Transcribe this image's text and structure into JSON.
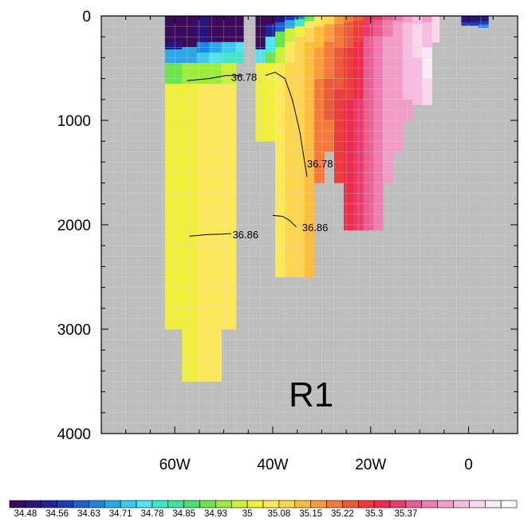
{
  "chart_data": {
    "type": "heatmap",
    "panel_label": "R1",
    "x_axis": {
      "range": [
        -75,
        10
      ],
      "tick_values": [
        -60,
        -40,
        -20,
        0
      ],
      "tick_labels": [
        "60W",
        "40W",
        "20W",
        "0"
      ]
    },
    "y_axis": {
      "range": [
        0,
        4000
      ],
      "inverted": true,
      "tick_values": [
        0,
        1000,
        2000,
        3000,
        4000
      ],
      "tick_labels": [
        "0",
        "1000",
        "2000",
        "3000",
        "4000"
      ]
    },
    "grid": true,
    "background_color": "#bebebe",
    "colorbar": {
      "orientation": "horizontal",
      "placement": "bottom",
      "tick_labels": [
        "34.48",
        "34.56",
        "34.63",
        "34.71",
        "34.78",
        "34.85",
        "34.93",
        "35",
        "35.08",
        "35.15",
        "35.22",
        "35.3",
        "35.37"
      ],
      "colors": [
        "#3c0a5a",
        "#2a157a",
        "#22239c",
        "#1f3ab8",
        "#1f5ed0",
        "#1f86e0",
        "#2aa8ea",
        "#3cc8f0",
        "#4fe4f0",
        "#3ce8c8",
        "#3ce49c",
        "#4ce070",
        "#6ce44c",
        "#9cec3c",
        "#ccf03c",
        "#f0f03c",
        "#fce85a",
        "#fcd64c",
        "#fcbc3c",
        "#fc9c3c",
        "#f47a3c",
        "#ec5a3c",
        "#ec3c3c",
        "#ec2c4c",
        "#e83c6c",
        "#ec5c90",
        "#f07cb0",
        "#f49cc8",
        "#f8bce0",
        "#fcd8ec",
        "#fceaf4",
        "#ffffff"
      ]
    },
    "columns": [
      {
        "x": [
          -62,
          -58.5
        ],
        "cells": [
          [
            0,
            250,
            0
          ],
          [
            250,
            320,
            1
          ],
          [
            320,
            450,
            6
          ],
          [
            450,
            650,
            12
          ],
          [
            650,
            3000,
            15
          ]
        ]
      },
      {
        "x": [
          -58.5,
          -55.5
        ],
        "cells": [
          [
            0,
            300,
            0
          ],
          [
            300,
            450,
            6
          ],
          [
            450,
            650,
            13
          ],
          [
            650,
            3500,
            15
          ]
        ]
      },
      {
        "x": [
          -55.5,
          -53
        ],
        "cells": [
          [
            0,
            250,
            1
          ],
          [
            250,
            350,
            5
          ],
          [
            350,
            450,
            7
          ],
          [
            450,
            650,
            13
          ],
          [
            650,
            3500,
            16
          ]
        ]
      },
      {
        "x": [
          -53,
          -50.5
        ],
        "cells": [
          [
            0,
            250,
            0
          ],
          [
            250,
            350,
            6
          ],
          [
            350,
            450,
            8
          ],
          [
            450,
            650,
            13
          ],
          [
            650,
            3500,
            16
          ]
        ]
      },
      {
        "x": [
          -50.5,
          -47.5
        ],
        "cells": [
          [
            0,
            250,
            0
          ],
          [
            250,
            350,
            7
          ],
          [
            350,
            450,
            9
          ],
          [
            450,
            650,
            14
          ],
          [
            650,
            3000,
            16
          ]
        ]
      },
      {
        "x": [
          -47.5,
          -46
        ],
        "cells": [
          [
            0,
            250,
            0
          ],
          [
            250,
            350,
            8
          ],
          [
            350,
            450,
            9
          ]
        ]
      },
      {
        "x": [
          -43.5,
          -41.5
        ],
        "cells": [
          [
            0,
            320,
            0
          ],
          [
            320,
            450,
            8
          ],
          [
            450,
            1200,
            15
          ]
        ]
      },
      {
        "x": [
          -41.5,
          -39.5
        ],
        "cells": [
          [
            0,
            80,
            0
          ],
          [
            80,
            200,
            2
          ],
          [
            200,
            350,
            8
          ],
          [
            350,
            450,
            12
          ],
          [
            450,
            1200,
            15
          ]
        ]
      },
      {
        "x": [
          -39.5,
          -37.5
        ],
        "cells": [
          [
            0,
            60,
            1
          ],
          [
            60,
            150,
            4
          ],
          [
            150,
            300,
            12
          ],
          [
            300,
            450,
            14
          ],
          [
            450,
            2500,
            16
          ]
        ]
      },
      {
        "x": [
          -37.5,
          -35.5
        ],
        "cells": [
          [
            0,
            40,
            3
          ],
          [
            40,
            120,
            6
          ],
          [
            120,
            250,
            14
          ],
          [
            250,
            450,
            16
          ],
          [
            450,
            2500,
            17
          ]
        ]
      },
      {
        "x": [
          -35.5,
          -33.5
        ],
        "cells": [
          [
            0,
            30,
            5
          ],
          [
            30,
            100,
            9
          ],
          [
            100,
            200,
            15
          ],
          [
            200,
            400,
            17
          ],
          [
            400,
            2500,
            17
          ]
        ]
      },
      {
        "x": [
          -33.5,
          -31.5
        ],
        "cells": [
          [
            0,
            50,
            12
          ],
          [
            50,
            120,
            16
          ],
          [
            120,
            250,
            17
          ],
          [
            250,
            500,
            18
          ],
          [
            500,
            2500,
            18
          ]
        ]
      },
      {
        "x": [
          -31.5,
          -29.5
        ],
        "cells": [
          [
            0,
            100,
            16
          ],
          [
            100,
            300,
            18
          ],
          [
            300,
            600,
            19
          ],
          [
            600,
            1600,
            20
          ]
        ]
      },
      {
        "x": [
          -29.5,
          -27.5
        ],
        "cells": [
          [
            0,
            80,
            17
          ],
          [
            80,
            250,
            19
          ],
          [
            250,
            600,
            20
          ],
          [
            600,
            1000,
            21
          ],
          [
            1000,
            1300,
            20
          ]
        ]
      },
      {
        "x": [
          -27.5,
          -25.5
        ],
        "cells": [
          [
            0,
            80,
            19
          ],
          [
            80,
            300,
            20
          ],
          [
            300,
            700,
            21
          ],
          [
            700,
            1600,
            22
          ]
        ]
      },
      {
        "x": [
          -25.5,
          -23.5
        ],
        "cells": [
          [
            0,
            60,
            20
          ],
          [
            60,
            300,
            21
          ],
          [
            300,
            800,
            22
          ],
          [
            800,
            1600,
            23
          ],
          [
            1600,
            2050,
            23
          ]
        ]
      },
      {
        "x": [
          -23.5,
          -21.5
        ],
        "cells": [
          [
            0,
            50,
            21
          ],
          [
            50,
            250,
            22
          ],
          [
            250,
            800,
            23
          ],
          [
            800,
            1600,
            24
          ],
          [
            1600,
            2050,
            24
          ]
        ]
      },
      {
        "x": [
          -21.5,
          -19.5
        ],
        "cells": [
          [
            0,
            40,
            22
          ],
          [
            40,
            200,
            24
          ],
          [
            200,
            700,
            25
          ],
          [
            700,
            1200,
            25
          ],
          [
            1200,
            2050,
            25
          ]
        ]
      },
      {
        "x": [
          -19.5,
          -17.5
        ],
        "cells": [
          [
            0,
            40,
            24
          ],
          [
            40,
            200,
            25
          ],
          [
            200,
            600,
            26
          ],
          [
            600,
            1200,
            26
          ],
          [
            1200,
            2050,
            26
          ]
        ]
      },
      {
        "x": [
          -17.5,
          -15.5
        ],
        "cells": [
          [
            0,
            40,
            25
          ],
          [
            40,
            200,
            26
          ],
          [
            200,
            600,
            27
          ],
          [
            600,
            1600,
            27
          ]
        ]
      },
      {
        "x": [
          -15.5,
          -13.5
        ],
        "cells": [
          [
            0,
            50,
            26
          ],
          [
            50,
            250,
            27
          ],
          [
            250,
            700,
            27
          ],
          [
            700,
            1300,
            27
          ]
        ]
      },
      {
        "x": [
          -13.5,
          -11.5
        ],
        "cells": [
          [
            0,
            60,
            27
          ],
          [
            60,
            300,
            28
          ],
          [
            300,
            800,
            28
          ],
          [
            800,
            1000,
            27
          ]
        ]
      },
      {
        "x": [
          -11.5,
          -9.5
        ],
        "cells": [
          [
            0,
            80,
            28
          ],
          [
            80,
            400,
            29
          ],
          [
            400,
            850,
            28
          ]
        ]
      },
      {
        "x": [
          -9.5,
          -7.5
        ],
        "cells": [
          [
            0,
            60,
            27
          ],
          [
            60,
            300,
            28
          ],
          [
            300,
            600,
            30
          ],
          [
            600,
            850,
            29
          ]
        ]
      },
      {
        "x": [
          -7.5,
          -6
        ],
        "cells": [
          [
            0,
            50,
            29
          ],
          [
            50,
            250,
            29
          ]
        ]
      },
      {
        "x": [
          -1.5,
          2
        ],
        "cells": [
          [
            0,
            60,
            1
          ],
          [
            60,
            90,
            3
          ]
        ]
      },
      {
        "x": [
          2,
          4
        ],
        "cells": [
          [
            0,
            50,
            1
          ],
          [
            50,
            80,
            3
          ],
          [
            80,
            110,
            5
          ]
        ]
      }
    ],
    "contours": [
      {
        "label": "36.78",
        "points": [
          [
            -57.5,
            620
          ],
          [
            -53,
            600
          ],
          [
            -49.5,
            570
          ],
          [
            -46,
            570
          ]
        ]
      },
      {
        "label": "36.78",
        "points": [
          [
            -41.5,
            570
          ],
          [
            -39.5,
            540
          ],
          [
            -37.5,
            600
          ],
          [
            -36,
            800
          ],
          [
            -34.5,
            1100
          ],
          [
            -33.5,
            1400
          ],
          [
            -33,
            1540
          ]
        ]
      },
      {
        "label": "36.86",
        "points": [
          [
            -57,
            2110
          ],
          [
            -53.5,
            2095
          ],
          [
            -50.5,
            2090
          ],
          [
            -48.5,
            2085
          ]
        ]
      },
      {
        "label": "36.86",
        "points": [
          [
            -40,
            1910
          ],
          [
            -38,
            1920
          ],
          [
            -36.5,
            1960
          ],
          [
            -35.2,
            2020
          ]
        ]
      }
    ],
    "contour_labels": [
      {
        "text": "36.78",
        "x": -48.5,
        "y": 590
      },
      {
        "text": "36.78",
        "x": -33,
        "y": 1420
      },
      {
        "text": "36.86",
        "x": -48.2,
        "y": 2100
      },
      {
        "text": "36.86",
        "x": -34,
        "y": 2030
      }
    ]
  }
}
